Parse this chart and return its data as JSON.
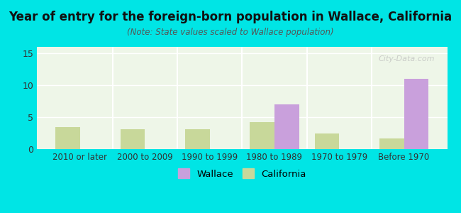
{
  "title": "Year of entry for the foreign-born population in Wallace, California",
  "subtitle": "(Note: State values scaled to Wallace population)",
  "categories": [
    "2010 or later",
    "2000 to 2009",
    "1990 to 1999",
    "1980 to 1989",
    "1970 to 1979",
    "Before 1970"
  ],
  "wallace_values": [
    0,
    0,
    0,
    7.0,
    0,
    11.0
  ],
  "california_values": [
    3.5,
    3.1,
    3.1,
    4.2,
    2.4,
    1.7
  ],
  "wallace_color": "#c9a0dc",
  "california_color": "#c8d89a",
  "background_color": "#00e5e5",
  "plot_bg_gradient_top": "#e8f5e9",
  "plot_bg_gradient_bottom": "#f5f5f0",
  "ylim": [
    0,
    16
  ],
  "yticks": [
    0,
    5,
    10,
    15
  ],
  "bar_width": 0.38,
  "legend_wallace": "Wallace",
  "legend_california": "California",
  "watermark": "City-Data.com"
}
